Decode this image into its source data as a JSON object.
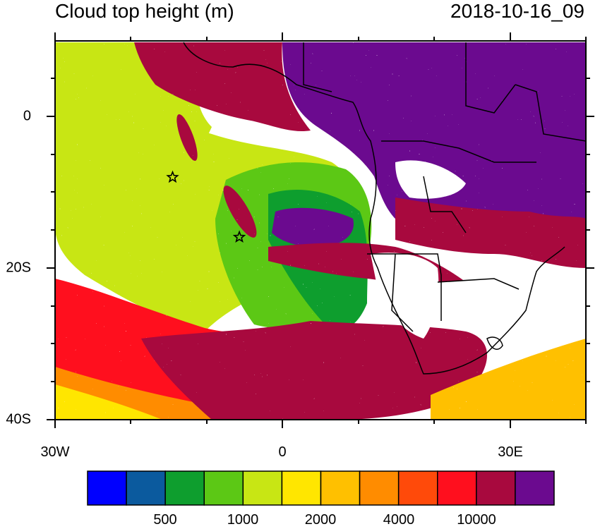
{
  "header": {
    "title": "Cloud top height (m)",
    "timestamp": "2018-10-16_09"
  },
  "map": {
    "projection": "lat-lon",
    "lon_range": [
      -30,
      40
    ],
    "lat_range": [
      -40,
      10
    ],
    "lon_tick_labels": [
      "30W",
      "0",
      "30E"
    ],
    "lat_tick_labels": [
      "0",
      "20S",
      "40S"
    ],
    "background_color": "#ffffff",
    "markers": [
      {
        "type": "star",
        "lon": -14.5,
        "lat": -8.0
      },
      {
        "type": "star",
        "lon": -5.7,
        "lat": -15.9
      }
    ]
  },
  "colorbar": {
    "colors": [
      "#0000ff",
      "#0b5a9e",
      "#0e9e2e",
      "#5cc815",
      "#c8e614",
      "#ffe600",
      "#ffc000",
      "#ff8c00",
      "#ff4a0a",
      "#ff0f1e",
      "#a8093e",
      "#6b0a8f"
    ],
    "labels": [
      "500",
      "1000",
      "2000",
      "4000",
      "10000"
    ]
  }
}
